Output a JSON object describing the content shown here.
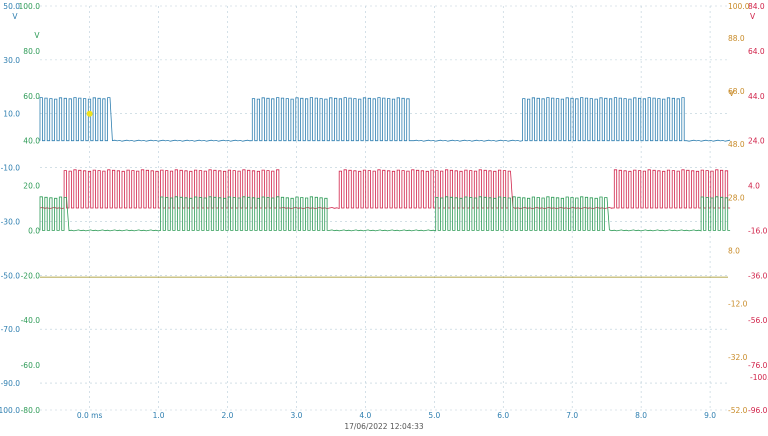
{
  "chart_data": {
    "type": "line",
    "title": "",
    "timestamp": "17/06/2022 12:04:33",
    "x_unit": "ms",
    "x_ticks": [
      "0.0 ms",
      "1.0",
      "2.0",
      "3.0",
      "4.0",
      "5.0",
      "6.0",
      "7.0",
      "8.0",
      "9.0"
    ],
    "x_tick_values": [
      0,
      1,
      2,
      3,
      4,
      5,
      6,
      7,
      8,
      9
    ],
    "xlim": [
      -0.72,
      9.26
    ],
    "grid": true,
    "colors": {
      "blue": "#2f7fb0",
      "red": "#d1234a",
      "green": "#2e9b57",
      "olive": "#9a8a10",
      "orange": "#c98c2a",
      "grid": "#b9cdd8"
    },
    "axes": {
      "blue_outer": {
        "unit": "V",
        "ticks": [
          "50.0",
          "30.0",
          "10.0",
          "-10.0",
          "-30.0",
          "-50.0",
          "-70.0",
          "-90.0",
          "-100.0"
        ],
        "values": [
          50,
          30,
          10,
          -10,
          -30,
          -50,
          -70,
          -90,
          -100
        ],
        "ylim": [
          -100,
          50
        ]
      },
      "green_inner": {
        "unit": "V",
        "ticks": [
          "100.0",
          "80.0",
          "60.0",
          "40.0",
          "20.0",
          "0.0",
          "-20.0",
          "-40.0",
          "-60.0",
          "-80.0"
        ],
        "values": [
          100,
          80,
          60,
          40,
          20,
          0,
          -20,
          -40,
          -60,
          -80
        ],
        "ylim": [
          -80,
          100
        ]
      },
      "red_right": {
        "unit": "V",
        "ticks": [
          "84.0",
          "64.0",
          "44.0",
          "24.0",
          "4.0",
          "-16.0",
          "-36.0",
          "-56.0",
          "-76.0",
          "-96.0"
        ],
        "values": [
          84,
          64,
          44,
          24,
          4,
          -16,
          -36,
          -56,
          -76,
          -96
        ],
        "ylim": [
          -96,
          84
        ]
      },
      "orange_right": {
        "unit": "V",
        "ticks": [
          "100.0",
          "88.0",
          "68.0",
          "48.0",
          "28.0",
          "8.0",
          "-12.0",
          "-32.0",
          "-52.0"
        ],
        "values": [
          100,
          88,
          68,
          48,
          28,
          8,
          -12,
          -32,
          -52
        ],
        "ylim": [
          -52,
          100
        ]
      },
      "extra_right": {
        "ticks": [
          "-100.0"
        ]
      }
    },
    "series": [
      {
        "color_key": "blue",
        "axis": "blue_outer",
        "low": 0.0,
        "high": 16.0,
        "blocks": [
          [
            -0.72,
            0.28
          ],
          [
            2.3,
            4.65
          ],
          [
            6.25,
            8.65
          ]
        ]
      },
      {
        "color_key": "red",
        "axis": "red_right",
        "low": -6.0,
        "high": 11.0,
        "blocks": [
          [
            -0.38,
            2.75
          ],
          [
            3.6,
            6.1
          ],
          [
            7.55,
            9.26
          ]
        ]
      },
      {
        "color_key": "green",
        "axis": "green_inner",
        "low": 0.0,
        "high": 15.0,
        "blocks": [
          [
            -0.72,
            -0.35
          ],
          [
            1.0,
            3.45
          ],
          [
            5.0,
            7.5
          ],
          [
            8.85,
            9.26
          ]
        ]
      },
      {
        "color_key": "olive",
        "axis": "orange_right",
        "level": -2.0,
        "shape": "flat"
      }
    ],
    "cursor_marker": {
      "x": 0.0,
      "y": 10.0,
      "color": "#f0e21a"
    }
  }
}
